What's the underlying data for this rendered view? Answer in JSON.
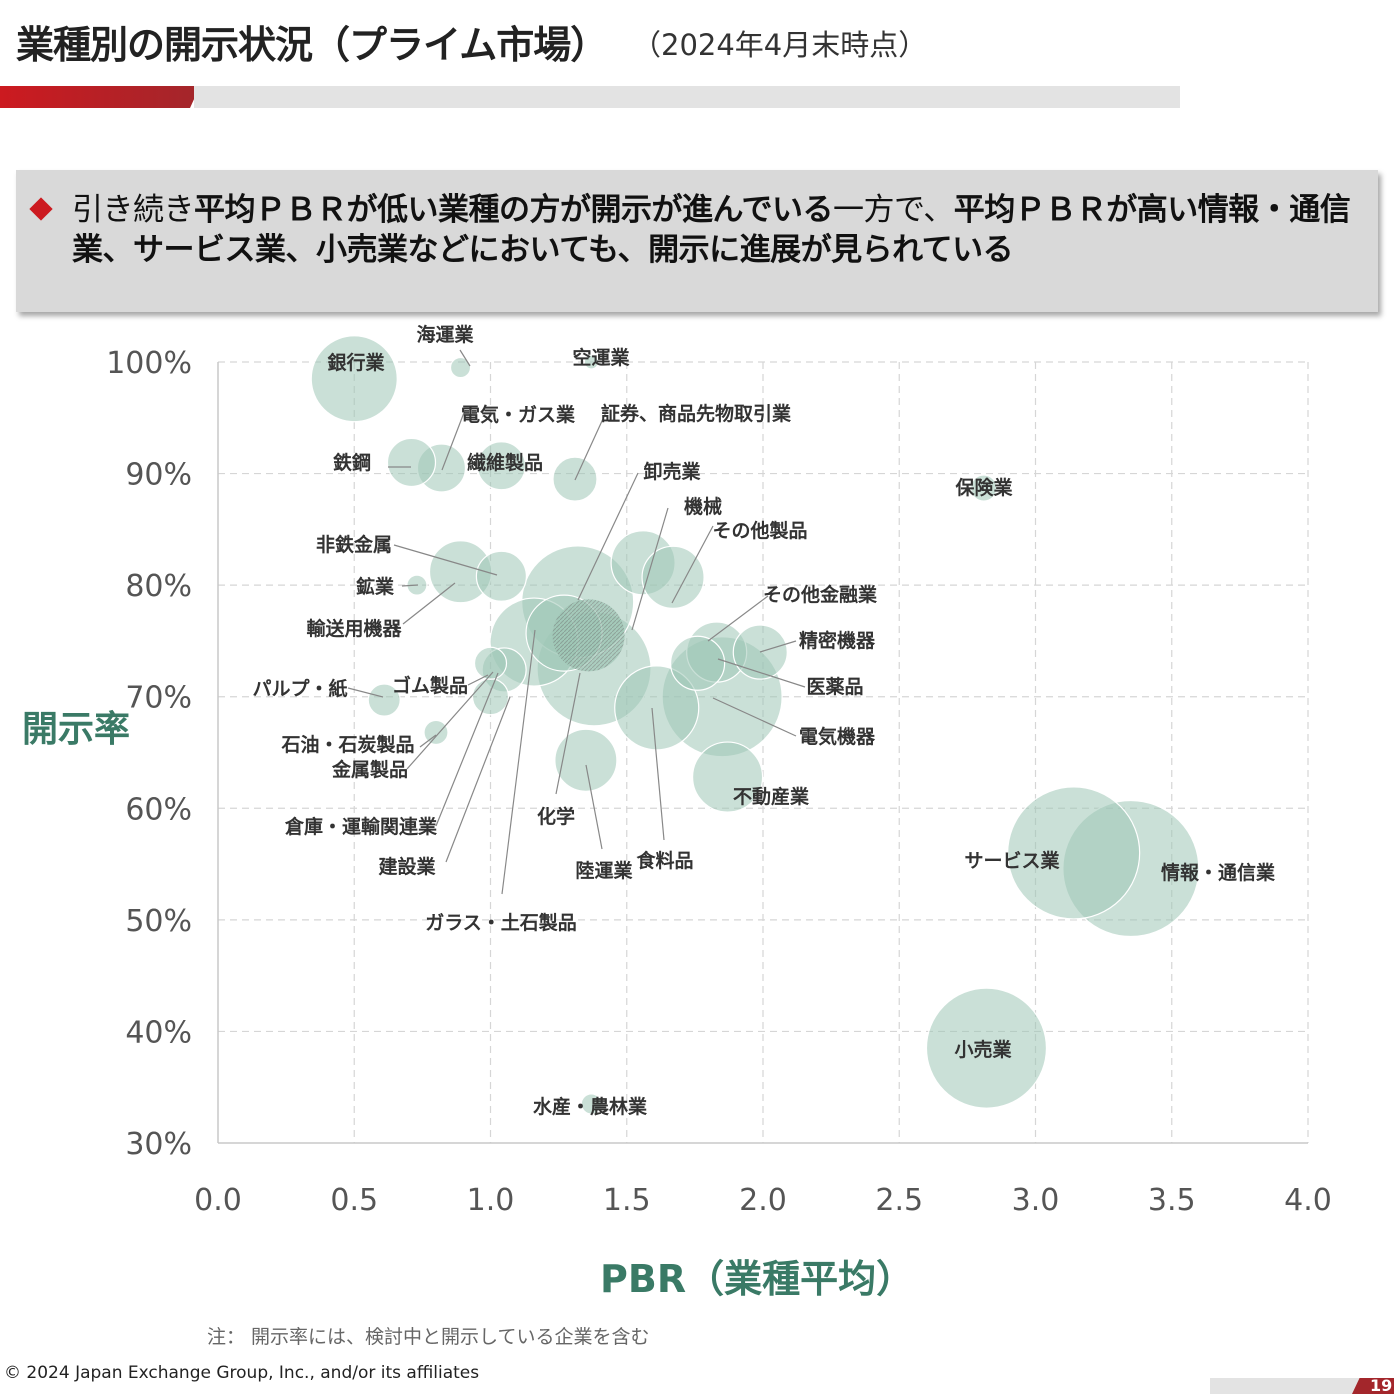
{
  "header": {
    "title": "業種別の開示状況（プライム市場）",
    "subtitle": "（2024年4月末時点）"
  },
  "message": {
    "part1": "引き続き",
    "part2": "平均ＰＢＲが低い業種の方が開示が進んでいる",
    "part3": "一方で、",
    "part4": "平均ＰＢＲが高い情報・通信業、サービス業、小売業などにおいても、開示に進展が見られている"
  },
  "chart_data": {
    "type": "scatter",
    "title": "",
    "xlabel": "PBR（業種平均）",
    "ylabel": "開示率",
    "xlim": [
      0.0,
      4.0
    ],
    "ylim": [
      0.3,
      1.0
    ],
    "xticks": [
      "0.0",
      "0.5",
      "1.0",
      "1.5",
      "2.0",
      "2.5",
      "3.0",
      "3.5",
      "4.0"
    ],
    "yticks": [
      "30%",
      "40%",
      "50%",
      "60%",
      "70%",
      "80%",
      "90%",
      "100%"
    ],
    "grid": true,
    "bubble_color": "#9fc7b6",
    "points": [
      {
        "name": "銀行業",
        "x": 0.5,
        "y": 0.985,
        "r": 43
      },
      {
        "name": "海運業",
        "x": 0.89,
        "y": 0.995,
        "r": 10
      },
      {
        "name": "空運業",
        "x": 1.37,
        "y": 1.0,
        "r": 7
      },
      {
        "name": "電気・ガス業",
        "x": 0.82,
        "y": 0.905,
        "r": 24
      },
      {
        "name": "証券、商品先物取引業",
        "x": 1.31,
        "y": 0.895,
        "r": 22
      },
      {
        "name": "鉄鋼",
        "x": 0.71,
        "y": 0.91,
        "r": 24
      },
      {
        "name": "繊維製品",
        "x": 1.04,
        "y": 0.907,
        "r": 24
      },
      {
        "name": "卸売業",
        "x": 1.32,
        "y": 0.785,
        "r": 56
      },
      {
        "name": "機械",
        "x": 1.56,
        "y": 0.82,
        "r": 32
      },
      {
        "name": "その他製品",
        "x": 1.67,
        "y": 0.807,
        "r": 31
      },
      {
        "name": "保険業",
        "x": 2.81,
        "y": 0.887,
        "r": 13
      },
      {
        "name": "非鉄金属",
        "x": 0.89,
        "y": 0.812,
        "r": 31
      },
      {
        "name": "鉱業",
        "x": 0.73,
        "y": 0.8,
        "r": 10
      },
      {
        "name": "輸送用機器",
        "x": 1.04,
        "y": 0.808,
        "r": 25
      },
      {
        "name": "その他金融業",
        "x": 1.83,
        "y": 0.74,
        "r": 30
      },
      {
        "name": "精密機器",
        "x": 1.99,
        "y": 0.74,
        "r": 27
      },
      {
        "name": "医薬品",
        "x": 1.76,
        "y": 0.73,
        "r": 27
      },
      {
        "name": "パルプ・紙",
        "x": 0.61,
        "y": 0.697,
        "r": 16
      },
      {
        "name": "ゴム製品",
        "x": 1.0,
        "y": 0.73,
        "r": 16
      },
      {
        "name": "電気機器",
        "x": 1.85,
        "y": 0.7,
        "r": 60
      },
      {
        "name": "化学",
        "x": 1.38,
        "y": 0.725,
        "r": 57
      },
      {
        "name": "ガラス・土石製品",
        "x": 1.27,
        "y": 0.757,
        "r": 38
      },
      {
        "name": "石油・石炭製品",
        "x": 0.8,
        "y": 0.668,
        "r": 12
      },
      {
        "name": "金属製品",
        "x": 1.0,
        "y": 0.7,
        "r": 18
      },
      {
        "name": "倉庫・運輸関連業",
        "x": 1.05,
        "y": 0.724,
        "r": 22
      },
      {
        "name": "建設業",
        "x": 1.16,
        "y": 0.749,
        "r": 44
      },
      {
        "name": "不動産業",
        "x": 1.87,
        "y": 0.628,
        "r": 35
      },
      {
        "name": "陸運業",
        "x": 1.35,
        "y": 0.643,
        "r": 31
      },
      {
        "name": "食料品",
        "x": 1.61,
        "y": 0.69,
        "r": 42
      },
      {
        "name": "サービス業",
        "x": 3.14,
        "y": 0.56,
        "r": 66
      },
      {
        "name": "情報・通信業",
        "x": 3.35,
        "y": 0.546,
        "r": 68
      },
      {
        "name": "小売業",
        "x": 2.82,
        "y": 0.385,
        "r": 60
      },
      {
        "name": "水産・農林業",
        "x": 1.37,
        "y": 0.335,
        "r": 10
      }
    ],
    "labels": [
      {
        "name": "銀行業"
      },
      {
        "name": "海運業"
      },
      {
        "name": "空運業"
      },
      {
        "name": "電気・ガス業"
      },
      {
        "name": "証券、商品先物取引業"
      },
      {
        "name": "鉄鋼"
      },
      {
        "name": "繊維製品"
      },
      {
        "name": "卸売業"
      },
      {
        "name": "機械"
      },
      {
        "name": "その他製品"
      },
      {
        "name": "保険業"
      },
      {
        "name": "非鉄金属"
      },
      {
        "name": "鉱業"
      },
      {
        "name": "輸送用機器"
      },
      {
        "name": "その他金融業"
      },
      {
        "name": "精密機器"
      },
      {
        "name": "医薬品"
      },
      {
        "name": "パルプ・紙"
      },
      {
        "name": "ゴム製品"
      },
      {
        "name": "電気機器"
      },
      {
        "name": "石油・石炭製品"
      },
      {
        "name": "金属製品"
      },
      {
        "name": "倉庫・運輸関連業"
      },
      {
        "name": "建設業"
      },
      {
        "name": "化学"
      },
      {
        "name": "陸運業"
      },
      {
        "name": "食料品"
      },
      {
        "name": "不動産業"
      },
      {
        "name": "ガラス・土石製品"
      },
      {
        "name": "サービス業"
      },
      {
        "name": "情報・通信業"
      },
      {
        "name": "小売業"
      },
      {
        "name": "水産・農林業"
      }
    ]
  },
  "footer": {
    "note": "注：  開示率には、検討中と開示している企業を含む",
    "copyright": "© 2024 Japan Exchange Group, Inc., and/or its affiliates",
    "page": "19"
  }
}
